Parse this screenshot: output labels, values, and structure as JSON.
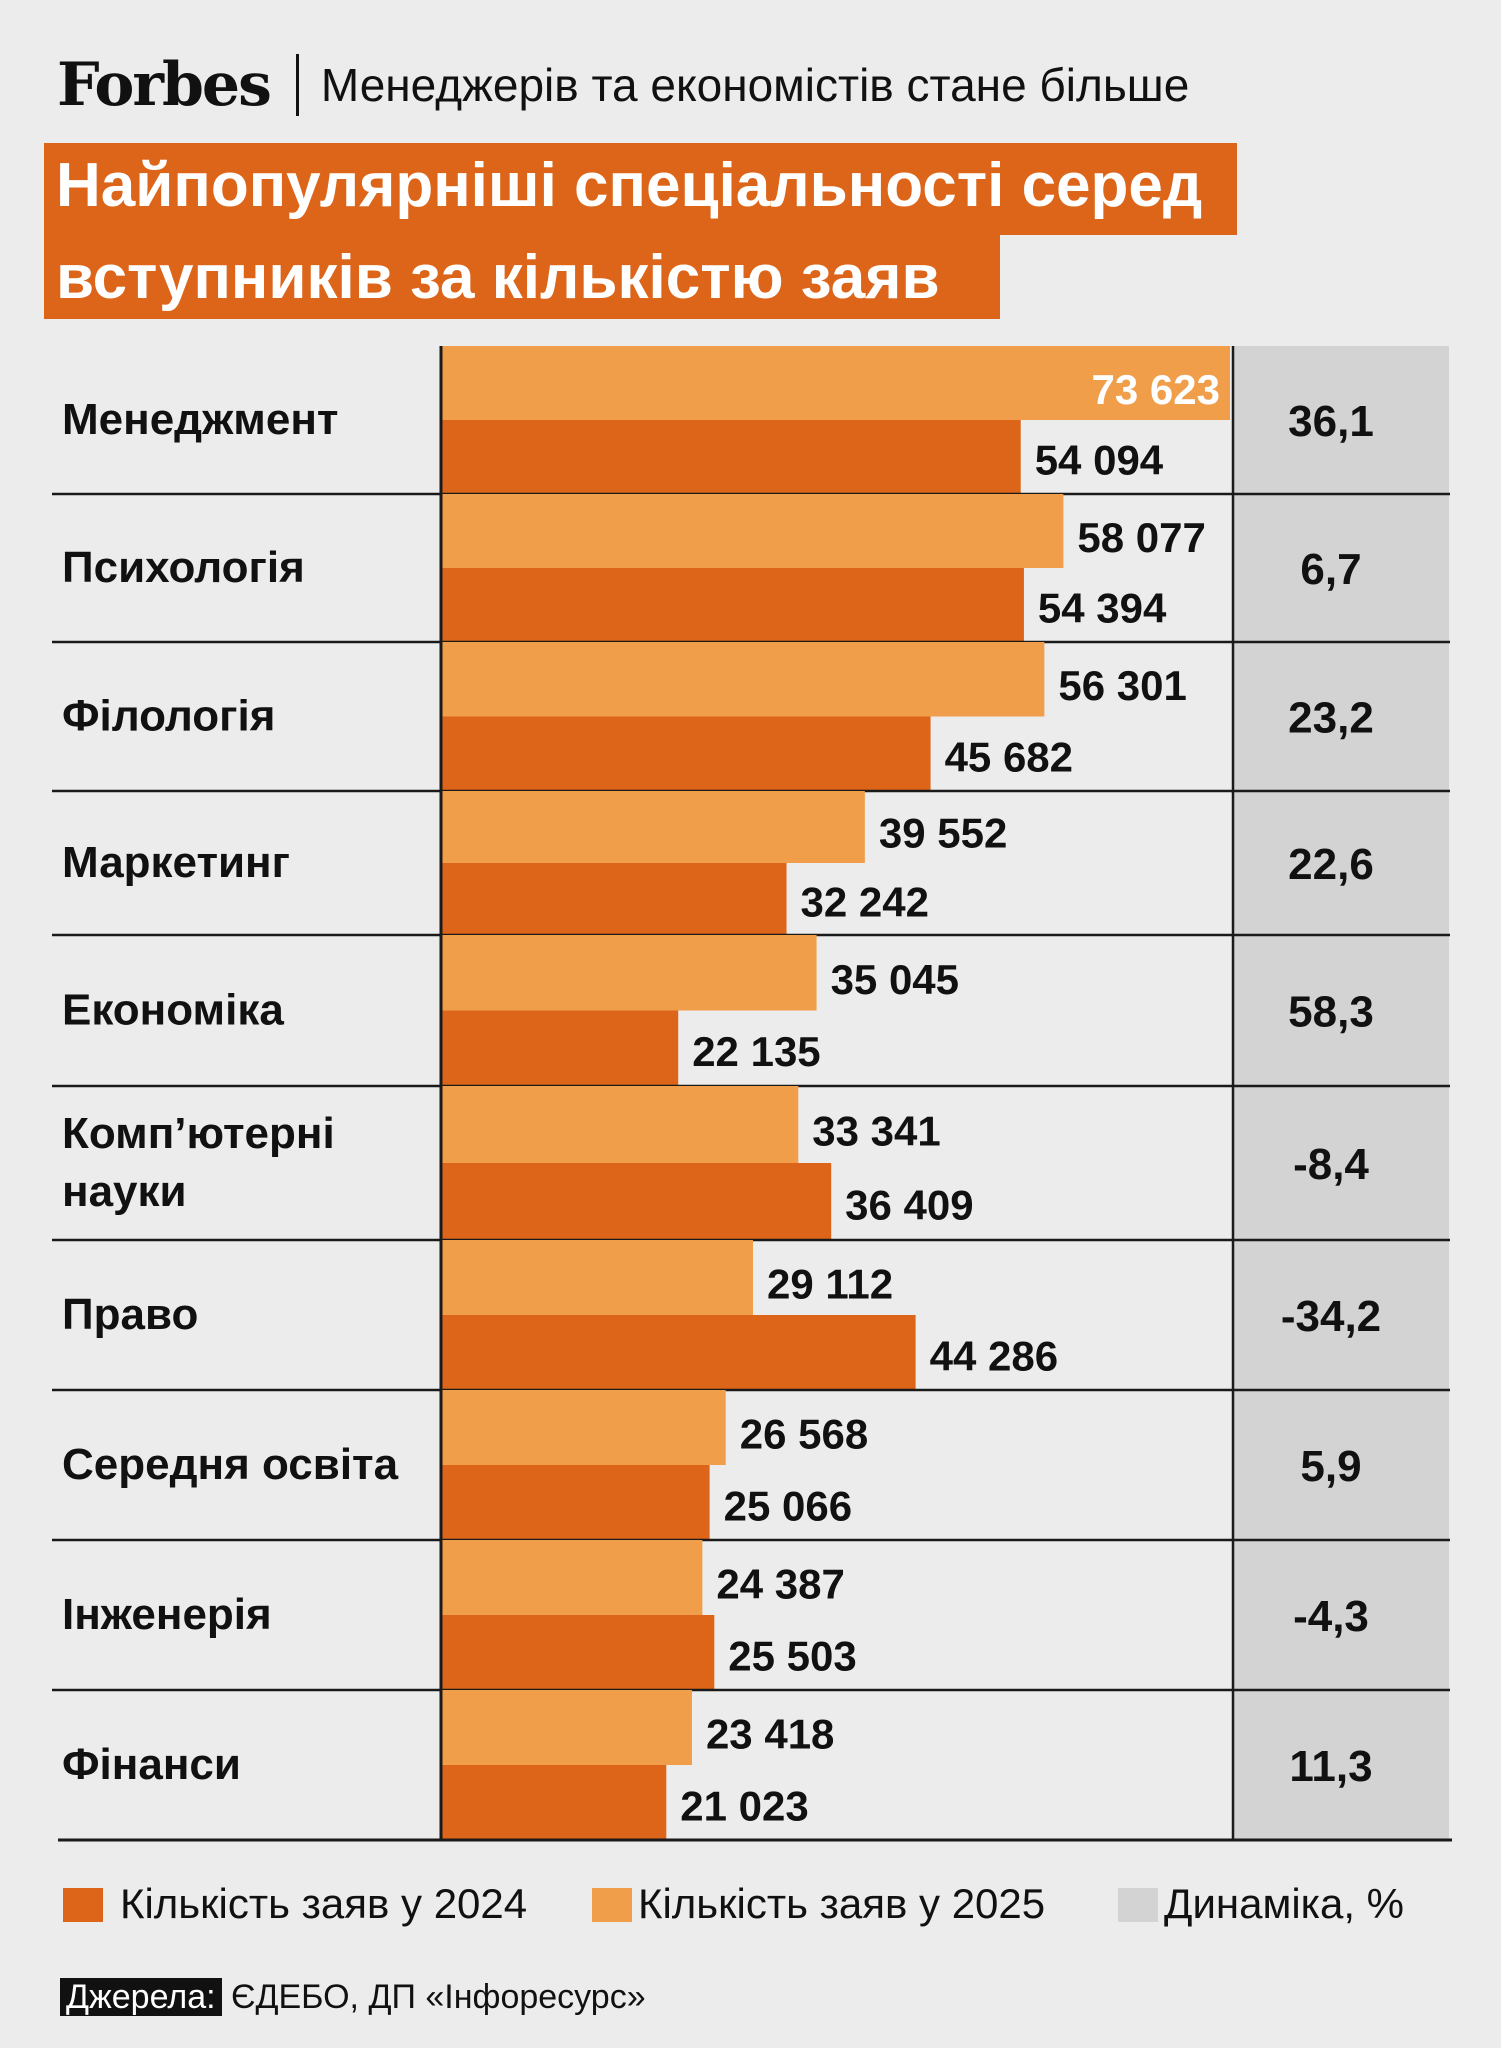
{
  "header": {
    "brand": "Forbes",
    "subtitle": "Менеджерів та економістів стане більше"
  },
  "title": {
    "line1": "Найпопулярніші спеціальності серед",
    "line2": "вступників за кількістю заяв"
  },
  "colors": {
    "y2024": "#dc6519",
    "y2025": "#f19e4b",
    "dynamics": "#d3d3d3",
    "background": "#ececec"
  },
  "chart_data": {
    "type": "bar",
    "orientation": "horizontal",
    "title": "Найпопулярніші спеціальності серед вступників за кількістю заяв",
    "categories": [
      [
        "Менеджмент"
      ],
      [
        "Психологія"
      ],
      [
        "Філологія"
      ],
      [
        "Маркетинг"
      ],
      [
        "Економіка"
      ],
      [
        "Комп’ютерні",
        "науки"
      ],
      [
        "Право"
      ],
      [
        "Середня освіта"
      ],
      [
        "Інженерія"
      ],
      [
        "Фінанси"
      ]
    ],
    "series": [
      {
        "name": "Кількість заяв у 2025",
        "values": [
          73623,
          58077,
          56301,
          39552,
          35045,
          33341,
          29112,
          26568,
          24387,
          23418
        ],
        "labels": [
          "73 623",
          "58 077",
          "56 301",
          "39 552",
          "35 045",
          "33 341",
          "29 112",
          "26 568",
          "24 387",
          "23 418"
        ]
      },
      {
        "name": "Кількість заяв у 2024",
        "values": [
          54094,
          54394,
          45682,
          32242,
          22135,
          36409,
          44286,
          25066,
          25503,
          21023
        ],
        "labels": [
          "54 094",
          "54 394",
          "45 682",
          "32 242",
          "22 135",
          "36 409",
          "44 286",
          "25 066",
          "25 503",
          "21 023"
        ]
      }
    ],
    "dynamics": {
      "name": "Динаміка, %",
      "labels": [
        "36,1",
        "6,7",
        "23,2",
        "22,6",
        "58,3",
        "-8,4",
        "-34,2",
        "5,9",
        "-4,3",
        "11,3"
      ]
    },
    "xlim": [
      0,
      73623
    ],
    "legend_position": "bottom"
  },
  "legend": {
    "y2024": "Кількість заяв у 2024",
    "y2025": "Кількість заяв у 2025",
    "dynamics": "Динаміка, %"
  },
  "source": {
    "label": "Джерела:",
    "text": "ЄДЕБО, ДП «Інфоресурс»"
  }
}
